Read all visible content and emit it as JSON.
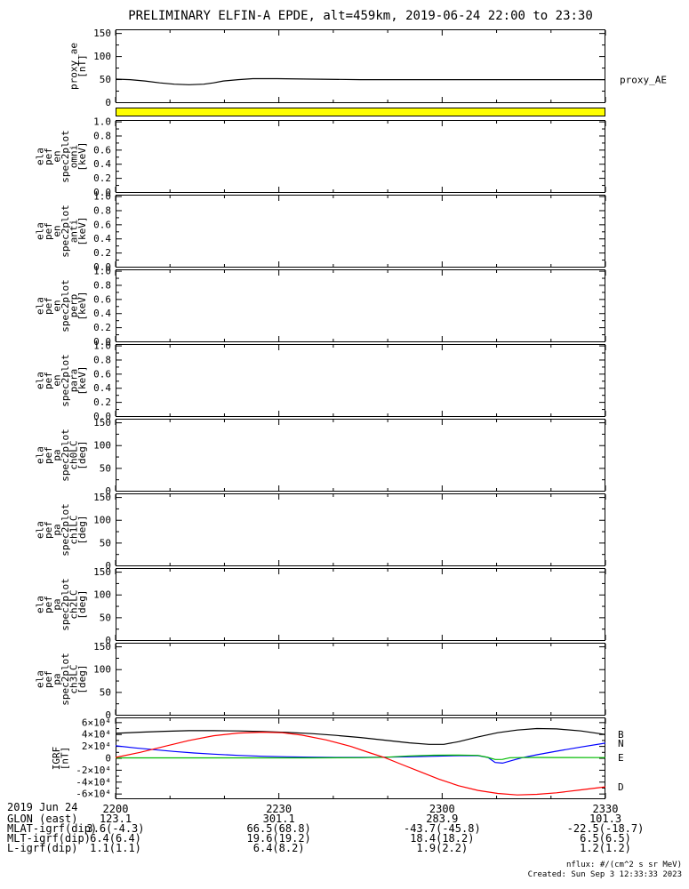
{
  "chart_data": {
    "type": "line",
    "title": "PRELIMINARY ELFIN-A EPDE, alt=459km, 2019-06-24 22:00 to 23:30",
    "x_axis": {
      "ticks": [
        {
          "t": 0,
          "label": "2200"
        },
        {
          "t": 0.33333,
          "label": "2230"
        },
        {
          "t": 0.66667,
          "label": "2300"
        },
        {
          "t": 1,
          "label": "2330"
        }
      ],
      "minor_divisions": 9
    },
    "panels": [
      {
        "id": "proxy_ae",
        "ylabel_lines": [
          "proxy_ae",
          "[nT]"
        ],
        "yrange": [
          0,
          158
        ],
        "yticks": [
          {
            "v": 0,
            "label": "0"
          },
          {
            "v": 50,
            "label": "50"
          },
          {
            "v": 100,
            "label": "100"
          },
          {
            "v": 150,
            "label": "150"
          }
        ],
        "right_label": "proxy_AE",
        "series": [
          {
            "name": "proxy_AE",
            "color": "#000000",
            "points": [
              [
                0,
                51
              ],
              [
                0.03,
                50
              ],
              [
                0.06,
                47
              ],
              [
                0.09,
                43
              ],
              [
                0.12,
                40
              ],
              [
                0.15,
                39
              ],
              [
                0.18,
                40
              ],
              [
                0.2,
                43
              ],
              [
                0.22,
                47
              ],
              [
                0.25,
                50
              ],
              [
                0.28,
                52
              ],
              [
                0.33,
                52
              ],
              [
                0.4,
                51
              ],
              [
                0.5,
                50
              ],
              [
                0.6,
                50
              ],
              [
                0.7,
                50
              ],
              [
                0.8,
                50
              ],
              [
                0.9,
                50
              ],
              [
                1,
                50
              ]
            ]
          }
        ]
      },
      {
        "id": "flag_bar",
        "fill": "#ffff00"
      },
      {
        "id": "en_omni",
        "ylabel_lines": [
          "ela",
          "pef",
          "en",
          "spec2plot",
          "omni",
          "[keV]"
        ],
        "yrange": [
          0,
          1.02
        ],
        "yticks": [
          {
            "v": 0,
            "label": "0.0"
          },
          {
            "v": 0.2,
            "label": "0.2"
          },
          {
            "v": 0.4,
            "label": "0.4"
          },
          {
            "v": 0.6,
            "label": "0.6"
          },
          {
            "v": 0.8,
            "label": "0.8"
          },
          {
            "v": 1,
            "label": "1.0"
          }
        ],
        "series": []
      },
      {
        "id": "en_anti",
        "ylabel_lines": [
          "ela",
          "pef",
          "en",
          "spec2plot",
          "anti",
          "[keV]"
        ],
        "yrange": [
          0,
          1.02
        ],
        "yticks": [
          {
            "v": 0,
            "label": "0.0"
          },
          {
            "v": 0.2,
            "label": "0.2"
          },
          {
            "v": 0.4,
            "label": "0.4"
          },
          {
            "v": 0.6,
            "label": "0.6"
          },
          {
            "v": 0.8,
            "label": "0.8"
          },
          {
            "v": 1,
            "label": "1.0"
          }
        ],
        "series": []
      },
      {
        "id": "en_perp",
        "ylabel_lines": [
          "ela",
          "pef",
          "en",
          "spec2plot",
          "perp",
          "[keV]"
        ],
        "yrange": [
          0,
          1.02
        ],
        "yticks": [
          {
            "v": 0,
            "label": "0.0"
          },
          {
            "v": 0.2,
            "label": "0.2"
          },
          {
            "v": 0.4,
            "label": "0.4"
          },
          {
            "v": 0.6,
            "label": "0.6"
          },
          {
            "v": 0.8,
            "label": "0.8"
          },
          {
            "v": 1,
            "label": "1.0"
          }
        ],
        "series": []
      },
      {
        "id": "en_para",
        "ylabel_lines": [
          "ela",
          "pef",
          "en",
          "spec2plot",
          "para",
          "[keV]"
        ],
        "yrange": [
          0,
          1.02
        ],
        "yticks": [
          {
            "v": 0,
            "label": "0.0"
          },
          {
            "v": 0.2,
            "label": "0.2"
          },
          {
            "v": 0.4,
            "label": "0.4"
          },
          {
            "v": 0.6,
            "label": "0.6"
          },
          {
            "v": 0.8,
            "label": "0.8"
          },
          {
            "v": 1,
            "label": "1.0"
          }
        ],
        "series": []
      },
      {
        "id": "pa_ch0lc",
        "ylabel_lines": [
          "ela",
          "pef",
          "pa",
          "spec2plot",
          "ch0LC",
          "[deg]"
        ],
        "yrange": [
          0,
          158
        ],
        "yticks": [
          {
            "v": 0,
            "label": "0"
          },
          {
            "v": 50,
            "label": "50"
          },
          {
            "v": 100,
            "label": "100"
          },
          {
            "v": 150,
            "label": "150"
          }
        ],
        "series": []
      },
      {
        "id": "pa_ch1lc",
        "ylabel_lines": [
          "ela",
          "pef",
          "pa",
          "spec2plot",
          "ch1LC",
          "[deg]"
        ],
        "yrange": [
          0,
          158
        ],
        "yticks": [
          {
            "v": 0,
            "label": "0"
          },
          {
            "v": 50,
            "label": "50"
          },
          {
            "v": 100,
            "label": "100"
          },
          {
            "v": 150,
            "label": "150"
          }
        ],
        "series": []
      },
      {
        "id": "pa_ch2lc",
        "ylabel_lines": [
          "ela",
          "pef",
          "pa",
          "spec2plot",
          "ch2LC",
          "[deg]"
        ],
        "yrange": [
          0,
          158
        ],
        "yticks": [
          {
            "v": 0,
            "label": "0"
          },
          {
            "v": 50,
            "label": "50"
          },
          {
            "v": 100,
            "label": "100"
          },
          {
            "v": 150,
            "label": "150"
          }
        ],
        "series": []
      },
      {
        "id": "pa_ch3lc",
        "ylabel_lines": [
          "ela",
          "pef",
          "pa",
          "spec2plot",
          "ch3LC",
          "[deg]"
        ],
        "yrange": [
          0,
          158
        ],
        "yticks": [
          {
            "v": 0,
            "label": "0"
          },
          {
            "v": 50,
            "label": "50"
          },
          {
            "v": 100,
            "label": "100"
          },
          {
            "v": 150,
            "label": "150"
          }
        ],
        "series": []
      },
      {
        "id": "igrf",
        "ylabel_lines": [
          "IGRF",
          "[nT]"
        ],
        "yrange": [
          -6.8,
          6.8
        ],
        "value_unit": "1e4 nT",
        "yticks": [
          {
            "v": -6,
            "label": "-6×10⁴"
          },
          {
            "v": -4,
            "label": "-4×10⁴"
          },
          {
            "v": -2,
            "label": "-2×10⁴"
          },
          {
            "v": 0,
            "label": "0"
          },
          {
            "v": 2,
            "label": "2×10⁴"
          },
          {
            "v": 4,
            "label": "4×10⁴"
          },
          {
            "v": 6,
            "label": "6×10⁴"
          }
        ],
        "series": [
          {
            "name": "B",
            "letter": "B",
            "color": "#000000",
            "points": [
              [
                0,
                4.2
              ],
              [
                0.05,
                4.4
              ],
              [
                0.1,
                4.55
              ],
              [
                0.15,
                4.65
              ],
              [
                0.2,
                4.65
              ],
              [
                0.25,
                4.6
              ],
              [
                0.3,
                4.5
              ],
              [
                0.35,
                4.35
              ],
              [
                0.4,
                4.15
              ],
              [
                0.45,
                3.85
              ],
              [
                0.5,
                3.5
              ],
              [
                0.55,
                3.05
              ],
              [
                0.6,
                2.6
              ],
              [
                0.64,
                2.35
              ],
              [
                0.67,
                2.35
              ],
              [
                0.7,
                2.8
              ],
              [
                0.74,
                3.6
              ],
              [
                0.78,
                4.3
              ],
              [
                0.82,
                4.75
              ],
              [
                0.86,
                5.0
              ],
              [
                0.9,
                4.95
              ],
              [
                0.95,
                4.6
              ],
              [
                1,
                4.0
              ]
            ]
          },
          {
            "name": "N",
            "letter": "N",
            "color": "#0000ff",
            "points": [
              [
                0,
                2.1
              ],
              [
                0.04,
                1.75
              ],
              [
                0.08,
                1.45
              ],
              [
                0.12,
                1.15
              ],
              [
                0.16,
                0.9
              ],
              [
                0.2,
                0.7
              ],
              [
                0.25,
                0.5
              ],
              [
                0.3,
                0.35
              ],
              [
                0.35,
                0.25
              ],
              [
                0.4,
                0.2
              ],
              [
                0.45,
                0.15
              ],
              [
                0.5,
                0.15
              ],
              [
                0.55,
                0.2
              ],
              [
                0.6,
                0.25
              ],
              [
                0.65,
                0.35
              ],
              [
                0.7,
                0.45
              ],
              [
                0.74,
                0.45
              ],
              [
                0.76,
                0.15
              ],
              [
                0.775,
                -0.7
              ],
              [
                0.79,
                -0.8
              ],
              [
                0.81,
                -0.35
              ],
              [
                0.83,
                0.1
              ],
              [
                0.86,
                0.6
              ],
              [
                0.9,
                1.2
              ],
              [
                0.95,
                1.9
              ],
              [
                1,
                2.55
              ]
            ]
          },
          {
            "name": "E",
            "letter": "E",
            "color": "#00bb00",
            "points": [
              [
                0,
                0.08
              ],
              [
                0.2,
                0.08
              ],
              [
                0.4,
                0.08
              ],
              [
                0.5,
                0.1
              ],
              [
                0.55,
                0.18
              ],
              [
                0.6,
                0.4
              ],
              [
                0.65,
                0.52
              ],
              [
                0.7,
                0.55
              ],
              [
                0.74,
                0.5
              ],
              [
                0.76,
                0.15
              ],
              [
                0.775,
                -0.2
              ],
              [
                0.79,
                -0.18
              ],
              [
                0.805,
                0.1
              ],
              [
                0.85,
                0.15
              ],
              [
                0.9,
                0.13
              ],
              [
                1,
                0.12
              ]
            ]
          },
          {
            "name": "D",
            "letter": "D",
            "color": "#ff0000",
            "points": [
              [
                0,
                0.15
              ],
              [
                0.05,
                1.0
              ],
              [
                0.1,
                2.0
              ],
              [
                0.15,
                3.0
              ],
              [
                0.2,
                3.8
              ],
              [
                0.25,
                4.25
              ],
              [
                0.3,
                4.4
              ],
              [
                0.34,
                4.3
              ],
              [
                0.38,
                3.9
              ],
              [
                0.43,
                3.1
              ],
              [
                0.48,
                2.0
              ],
              [
                0.52,
                0.9
              ],
              [
                0.55,
                0.1
              ],
              [
                0.58,
                -0.9
              ],
              [
                0.62,
                -2.2
              ],
              [
                0.66,
                -3.5
              ],
              [
                0.7,
                -4.6
              ],
              [
                0.74,
                -5.4
              ],
              [
                0.78,
                -5.9
              ],
              [
                0.82,
                -6.15
              ],
              [
                0.86,
                -6.05
              ],
              [
                0.9,
                -5.8
              ],
              [
                0.95,
                -5.3
              ],
              [
                1,
                -4.8
              ]
            ]
          }
        ]
      }
    ],
    "bottom_table": {
      "date_label": "2019 Jun 24",
      "rows": [
        {
          "label": "GLON (east)",
          "values": [
            "123.1",
            "301.1",
            "283.9",
            "101.3"
          ]
        },
        {
          "label": "MLAT-igrf(dip)",
          "values": [
            "3.6(-4.3)",
            "66.5(68.8)",
            "-43.7(-45.8)",
            "-22.5(-18.7)"
          ]
        },
        {
          "label": "MLT-igrf(dip)",
          "values": [
            "6.4(6.4)",
            "19.6(19.2)",
            "18.4(18.2)",
            "6.5(6.5)"
          ]
        },
        {
          "label": "L-igrf(dip)",
          "values": [
            "1.1(1.1)",
            "6.4(8.2)",
            "1.9(2.2)",
            "1.2(1.2)"
          ]
        }
      ]
    },
    "footer": {
      "units": "nflux: #/(cm^2 s sr MeV)",
      "created": "Created: Sun Sep  3 12:33:33 2023"
    },
    "colors": {
      "flag_bar": "#ffff00",
      "igrf_b": "#000000",
      "igrf_n": "#0000ff",
      "igrf_e": "#00bb00",
      "igrf_d": "#ff0000"
    }
  }
}
